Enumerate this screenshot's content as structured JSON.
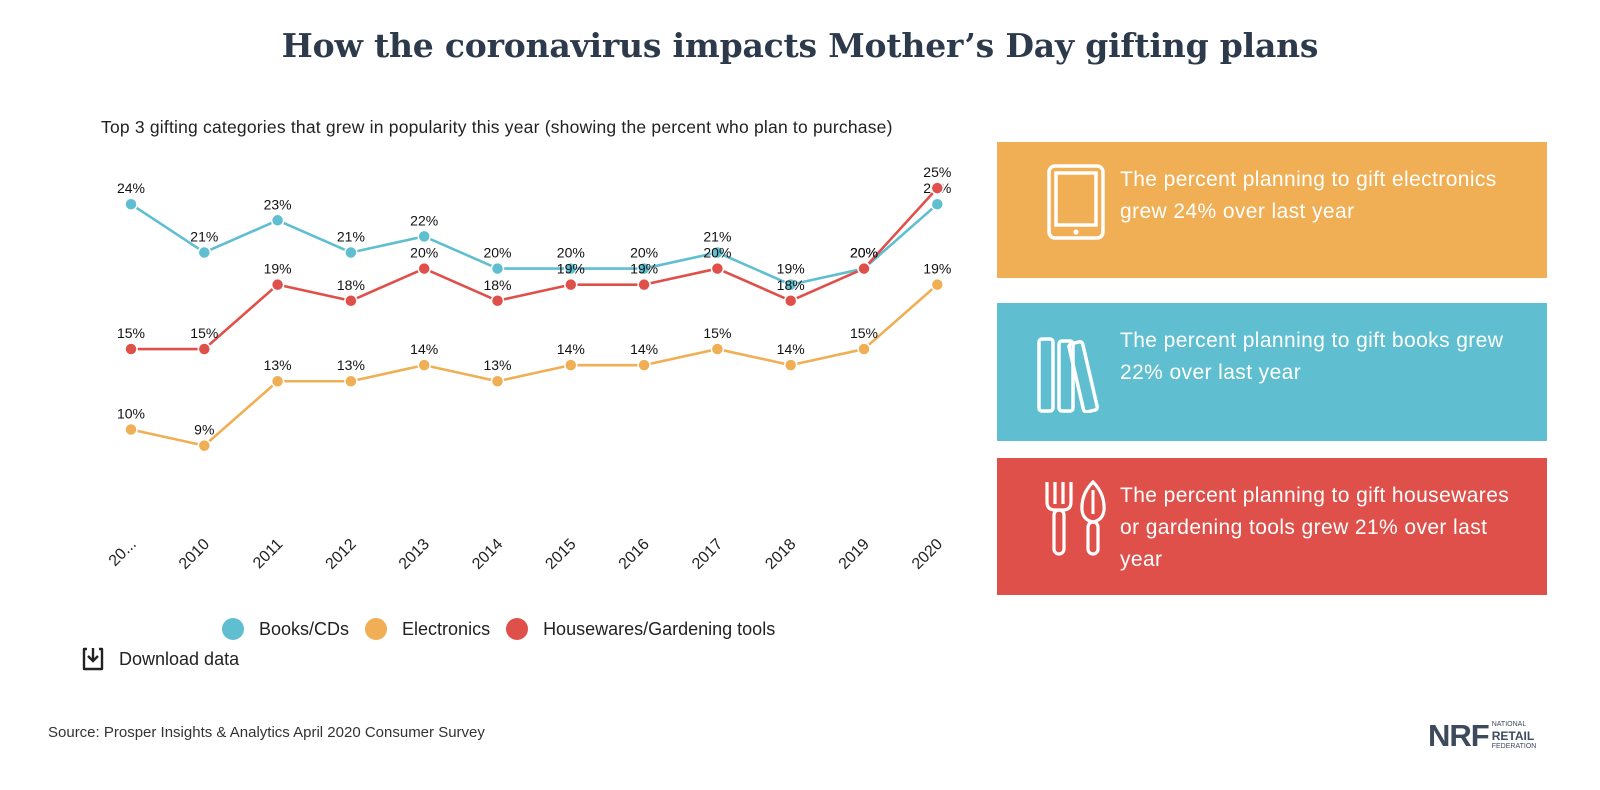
{
  "header": {
    "title": "How the coronavirus impacts Mother’s Day gifting plans",
    "subtitle": "Top 3 gifting categories that grew in popularity this year (showing the percent who plan to purchase)"
  },
  "chart_data": {
    "type": "line",
    "title": "How the coronavirus impacts Mother’s Day gifting plans",
    "subtitle": "Top 3 gifting categories that grew in popularity this year (showing the percent who plan to purchase)",
    "categories": [
      "20...",
      "2010",
      "2011",
      "2012",
      "2013",
      "2014",
      "2015",
      "2016",
      "2017",
      "2018",
      "2019",
      "2020"
    ],
    "ylim": [
      5,
      26
    ],
    "grid": false,
    "legend_position": "bottom",
    "series": [
      {
        "name": "Books/CDs",
        "color": "#5fbfd0",
        "values": [
          24,
          21,
          23,
          21,
          22,
          20,
          20,
          20,
          21,
          19,
          20,
          24
        ]
      },
      {
        "name": "Electronics",
        "color": "#f0af55",
        "values": [
          10,
          9,
          13,
          13,
          14,
          13,
          14,
          14,
          15,
          14,
          15,
          19
        ]
      },
      {
        "name": "Housewares/Gardening tools",
        "color": "#e0504a",
        "values": [
          15,
          15,
          19,
          18,
          20,
          18,
          19,
          19,
          20,
          18,
          20,
          25
        ]
      }
    ]
  },
  "legend": [
    {
      "label": "Books/CDs",
      "color": "#5fbfd0"
    },
    {
      "label": "Electronics",
      "color": "#f0af55"
    },
    {
      "label": "Housewares/Gardening tools",
      "color": "#e0504a"
    }
  ],
  "download": {
    "label": "Download data",
    "icon": "download-icon"
  },
  "cards": [
    {
      "text": "The percent planning to gift electronics grew 24% over last year",
      "icon": "tablet-icon",
      "color": "#f0af55"
    },
    {
      "text": "The percent planning to gift books grew 22% over last year",
      "icon": "books-icon",
      "color": "#5fbfd0"
    },
    {
      "text": "The percent planning to gift housewares or gardening tools grew 21% over last year",
      "icon": "fork-trowel-icon",
      "color": "#e0504a"
    }
  ],
  "source": "Source: Prosper Insights & Analytics April 2020 Consumer Survey",
  "logo": {
    "mark": "NRF",
    "line1": "NATIONAL",
    "line2": "RETAIL",
    "line3": "FEDERATION"
  }
}
